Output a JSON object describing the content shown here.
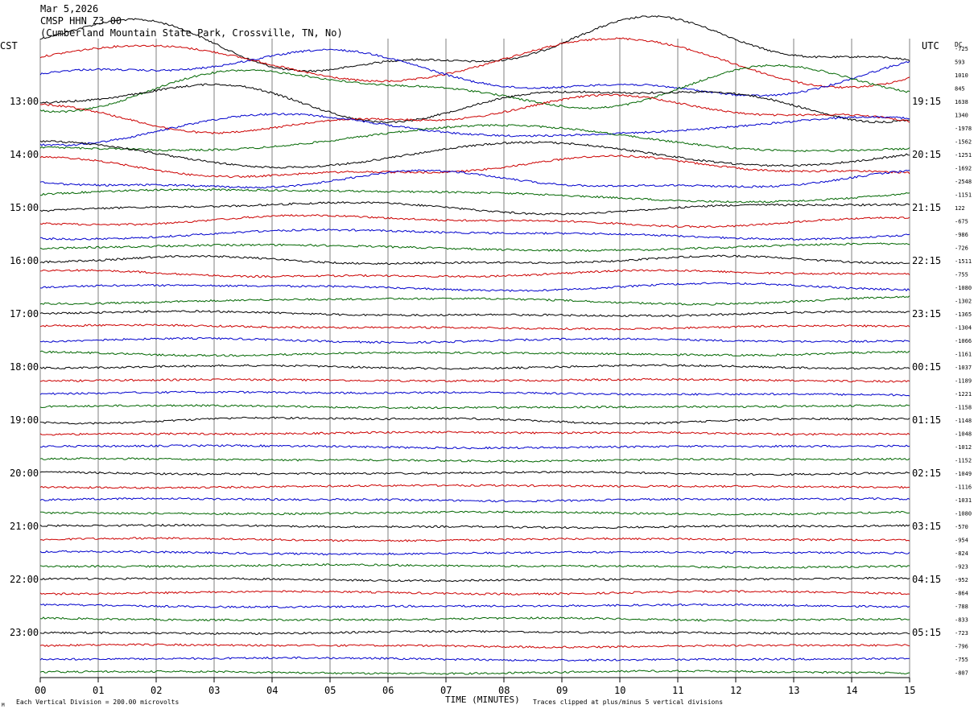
{
  "header": {
    "date": "Mar 5,2026",
    "station": "CMSP HHN Z3 00",
    "location": "(Cumberland Mountain State Park, Crossville, TN, No)"
  },
  "left_label": "CST",
  "right_label": "UTC",
  "dc_label": "DC",
  "footer": {
    "scale_note": "Each Vertical Division =  200.00 microvolts",
    "clip_note": "Traces clipped at plus/minus 5 vertical divisions",
    "corner_mark": "M"
  },
  "chart_data": {
    "type": "line",
    "title": "",
    "xlabel": "TIME (MINUTES)",
    "x_ticks": [
      "00",
      "01",
      "02",
      "03",
      "04",
      "05",
      "06",
      "07",
      "08",
      "09",
      "10",
      "11",
      "12",
      "13",
      "14",
      "15"
    ],
    "xlim": [
      0,
      15
    ],
    "grid": "vertical lines at each minute",
    "left_hours": [
      "13:00",
      "14:00",
      "15:00",
      "16:00",
      "17:00",
      "18:00",
      "19:00",
      "20:00",
      "21:00",
      "22:00",
      "23:00"
    ],
    "right_hours": [
      "19:15",
      "20:15",
      "21:15",
      "22:15",
      "23:15",
      "00:15",
      "01:15",
      "02:15",
      "03:15",
      "04:15",
      "05:15"
    ],
    "trace_color_cycle": [
      "#000000",
      "#cc0000",
      "#0000cc",
      "#006600"
    ],
    "first_trace_color_index": 0,
    "dc_offsets": [
      "-725",
      "593",
      "1010",
      "845",
      "1638",
      "1340",
      "-1978",
      "-1562",
      "-1251",
      "-1692",
      "-2548",
      "-1151",
      "122",
      "-675",
      "-986",
      "-726",
      "-1511",
      "-755",
      "-1080",
      "-1302",
      "-1365",
      "-1304",
      "-1066",
      "-1161",
      "-1037",
      "-1189",
      "-1221",
      "-1158",
      "-1148",
      "-1048",
      "-1012",
      "-1152",
      "-1049",
      "-1116",
      "-1031",
      "-1080",
      "-570",
      "-954",
      "-824",
      "-923",
      "-952",
      "-864",
      "-788",
      "-833",
      "-723",
      "-796",
      "-755",
      "-807"
    ],
    "amplitudes_divisions": [
      2.4,
      2.2,
      2.0,
      1.8,
      1.6,
      1.5,
      1.3,
      1.2,
      1.0,
      0.9,
      0.8,
      0.7,
      0.5,
      0.45,
      0.4,
      0.4,
      0.35,
      0.3,
      0.3,
      0.3,
      0.2,
      0.15,
      0.15,
      0.15,
      0.12,
      0.12,
      0.12,
      0.1,
      0.25,
      0.1,
      0.1,
      0.1,
      0.1,
      0.1,
      0.1,
      0.1,
      0.1,
      0.1,
      0.1,
      0.1,
      0.1,
      0.1,
      0.1,
      0.1,
      0.1,
      0.1,
      0.1,
      0.1
    ],
    "vertical_division_microvolts": 200.0,
    "clip_divisions": 5
  }
}
